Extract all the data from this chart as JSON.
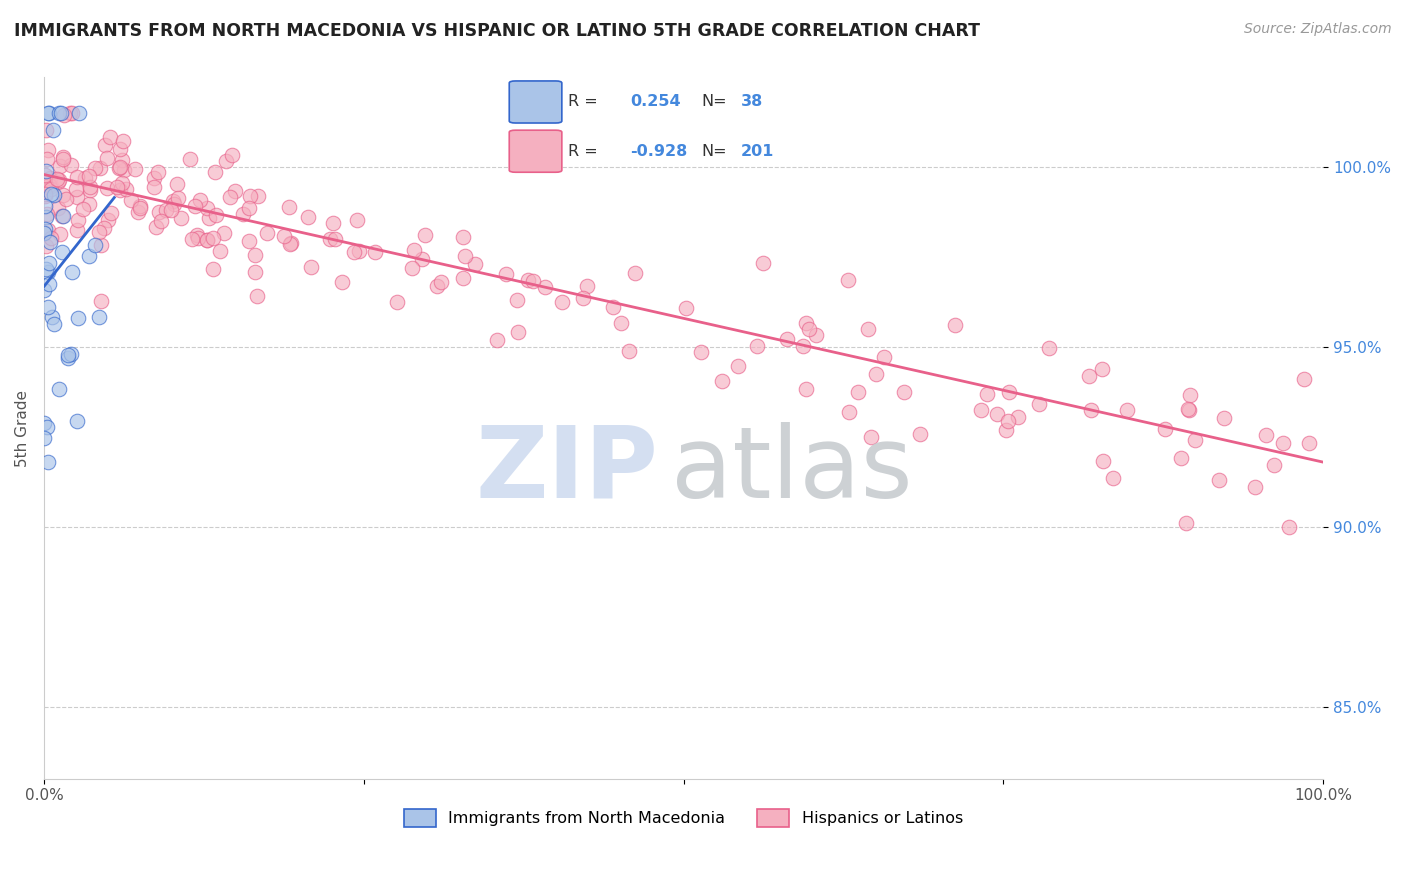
{
  "title": "IMMIGRANTS FROM NORTH MACEDONIA VS HISPANIC OR LATINO 5TH GRADE CORRELATION CHART",
  "source": "Source: ZipAtlas.com",
  "ylabel": "5th Grade",
  "legend_label1": "Immigrants from North Macedonia",
  "legend_label2": "Hispanics or Latinos",
  "r1": 0.254,
  "n1": 38,
  "r2": -0.928,
  "n2": 201,
  "color_blue": "#aac4e8",
  "color_pink": "#f5b0c0",
  "line_blue": "#3366cc",
  "line_pink": "#e8608a",
  "right_yticks": [
    85.0,
    90.0,
    95.0,
    100.0
  ],
  "ymin": 83.0,
  "ymax": 102.5,
  "xmin": 0.0,
  "xmax": 100.0,
  "background_color": "#ffffff",
  "grid_color": "#cccccc",
  "title_color": "#222222",
  "axis_label_color": "#555555",
  "right_tick_color": "#4488dd",
  "legend_text_color_label": "#333333",
  "legend_text_color_value": "#4488dd",
  "watermark_zip_color": "#d0dcf0",
  "watermark_atlas_color": "#c8ccd0"
}
